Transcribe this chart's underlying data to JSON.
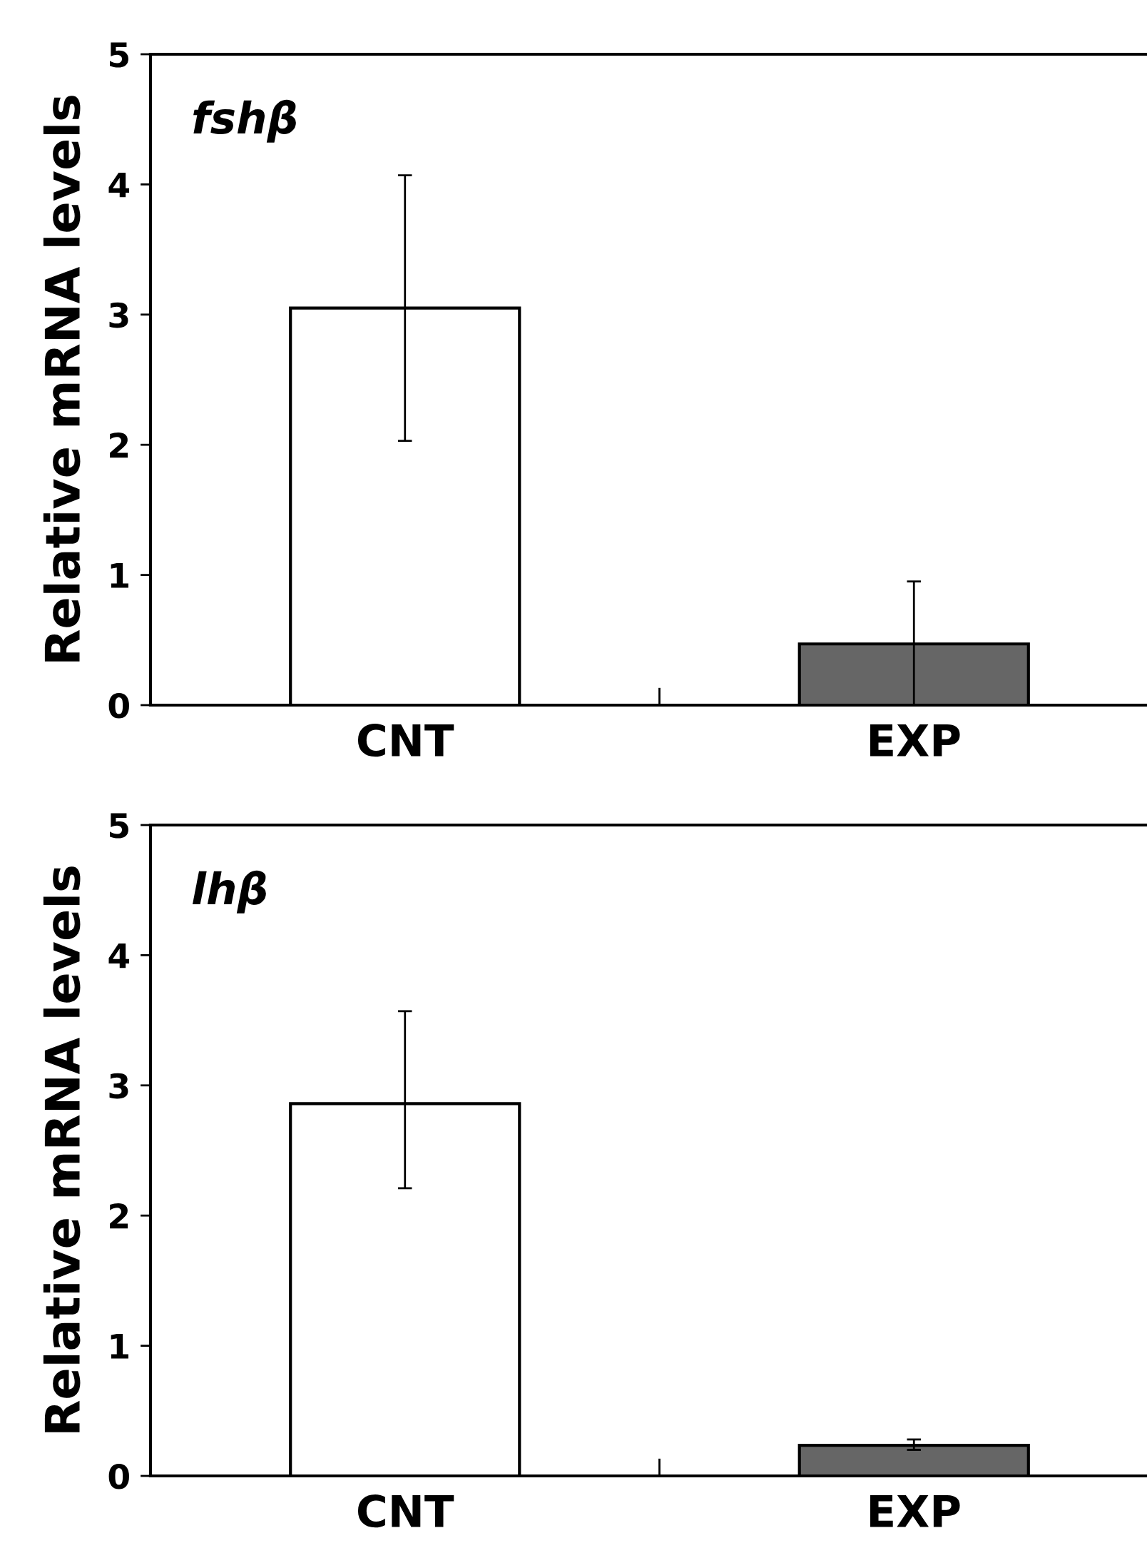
{
  "chart_data": [
    {
      "type": "bar",
      "annotations": [
        "fshβ"
      ],
      "ylabel": "Relative mRNA levels",
      "categories": [
        "CNT",
        "EXP"
      ],
      "values": [
        3.05,
        0.47
      ],
      "errors": [
        [
          2.03,
          4.07
        ],
        [
          0,
          0.95
        ]
      ],
      "colors": [
        "#ffffff",
        "#666666"
      ],
      "ylim": [
        0,
        5
      ],
      "yticks": [
        0,
        1,
        2,
        3,
        4,
        5
      ],
      "grid": false,
      "legend": false
    },
    {
      "type": "bar",
      "annotations": [
        "lhβ"
      ],
      "ylabel": "Relative mRNA levels",
      "categories": [
        "CNT",
        "EXP"
      ],
      "values": [
        2.86,
        0.235
      ],
      "errors": [
        [
          2.21,
          3.57
        ],
        [
          0.2,
          0.28
        ]
      ],
      "colors": [
        "#ffffff",
        "#666666"
      ],
      "ylim": [
        0,
        5
      ],
      "yticks": [
        0,
        1,
        2,
        3,
        4,
        5
      ],
      "grid": false,
      "legend": false
    }
  ]
}
